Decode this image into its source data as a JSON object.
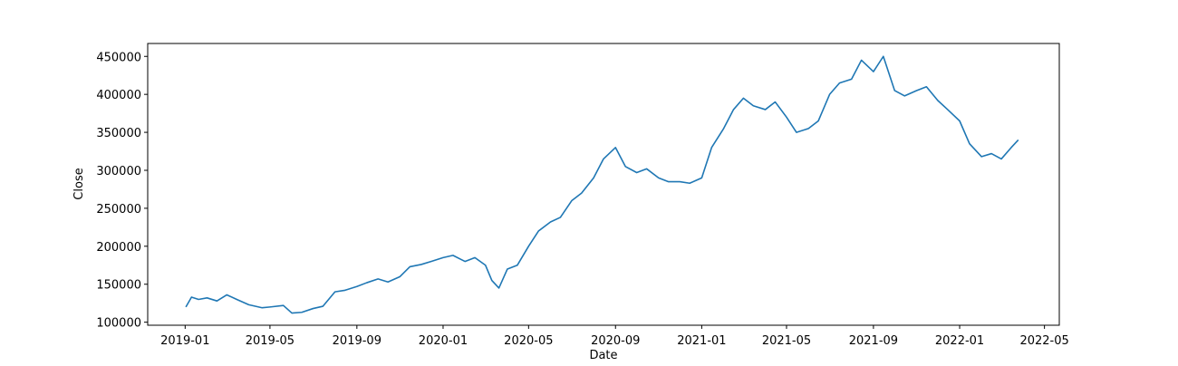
{
  "chart_data": {
    "type": "line",
    "title": "",
    "xlabel": "Date",
    "ylabel": "Close",
    "grid": false,
    "legend": "none",
    "xlim": [
      "2018-11-09",
      "2022-05-22"
    ],
    "ylim": [
      96000,
      467000
    ],
    "x_ticks": [
      "2019-01",
      "2019-05",
      "2019-09",
      "2020-01",
      "2020-05",
      "2020-09",
      "2021-01",
      "2021-05",
      "2021-09",
      "2022-01",
      "2022-05"
    ],
    "y_ticks": [
      100000,
      150000,
      200000,
      250000,
      300000,
      350000,
      400000,
      450000
    ],
    "line_color": "#1f77b4",
    "series": [
      {
        "name": "",
        "x": [
          "2019-01-02",
          "2019-01-10",
          "2019-01-20",
          "2019-02-01",
          "2019-02-15",
          "2019-03-01",
          "2019-03-15",
          "2019-04-01",
          "2019-04-20",
          "2019-05-01",
          "2019-05-20",
          "2019-06-01",
          "2019-06-15",
          "2019-07-01",
          "2019-07-15",
          "2019-08-01",
          "2019-08-15",
          "2019-09-01",
          "2019-09-15",
          "2019-10-01",
          "2019-10-15",
          "2019-11-01",
          "2019-11-15",
          "2019-12-01",
          "2019-12-15",
          "2020-01-01",
          "2020-01-15",
          "2020-02-01",
          "2020-02-15",
          "2020-03-01",
          "2020-03-10",
          "2020-03-20",
          "2020-04-01",
          "2020-04-15",
          "2020-05-01",
          "2020-05-15",
          "2020-06-01",
          "2020-06-15",
          "2020-07-01",
          "2020-07-15",
          "2020-08-01",
          "2020-08-15",
          "2020-09-01",
          "2020-09-15",
          "2020-10-01",
          "2020-10-15",
          "2020-11-01",
          "2020-11-15",
          "2020-12-01",
          "2020-12-15",
          "2021-01-01",
          "2021-01-15",
          "2021-02-01",
          "2021-02-15",
          "2021-03-01",
          "2021-03-15",
          "2021-04-01",
          "2021-04-15",
          "2021-05-01",
          "2021-05-15",
          "2021-06-01",
          "2021-06-15",
          "2021-07-01",
          "2021-07-15",
          "2021-08-01",
          "2021-08-15",
          "2021-09-01",
          "2021-09-15",
          "2021-10-01",
          "2021-10-15",
          "2021-11-01",
          "2021-11-15",
          "2021-12-01",
          "2021-12-15",
          "2022-01-01",
          "2022-01-15",
          "2022-02-01",
          "2022-02-15",
          "2022-03-01",
          "2022-03-15",
          "2022-03-25"
        ],
        "values": [
          120000,
          133000,
          130000,
          132000,
          128000,
          136000,
          130000,
          123000,
          119000,
          120000,
          122000,
          112000,
          113000,
          118000,
          121000,
          140000,
          142000,
          147000,
          152000,
          157000,
          153000,
          160000,
          173000,
          176000,
          180000,
          185000,
          188000,
          180000,
          185000,
          175000,
          155000,
          145000,
          170000,
          175000,
          200000,
          220000,
          232000,
          238000,
          260000,
          270000,
          290000,
          315000,
          330000,
          305000,
          297000,
          302000,
          290000,
          285000,
          285000,
          283000,
          290000,
          330000,
          355000,
          380000,
          395000,
          385000,
          380000,
          390000,
          370000,
          350000,
          355000,
          365000,
          400000,
          415000,
          420000,
          445000,
          430000,
          450000,
          405000,
          398000,
          405000,
          410000,
          392000,
          380000,
          365000,
          335000,
          318000,
          322000,
          315000,
          330000,
          340000
        ]
      }
    ]
  }
}
